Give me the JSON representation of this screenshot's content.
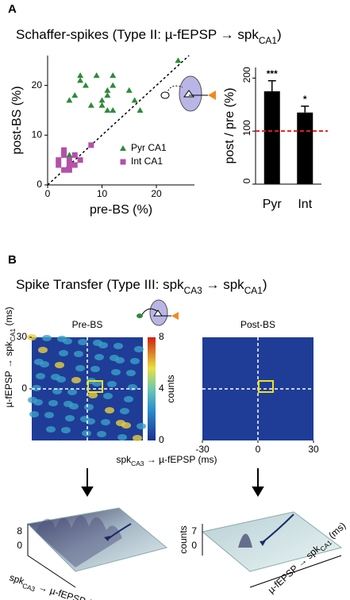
{
  "panels": [
    "A",
    "B"
  ],
  "panel_titles": [
    [
      "Schaffer-spikes  (Type II: µ-fEPSP → spk",
      "CA1",
      ")"
    ],
    [
      "Spike Transfer (Type III: spk",
      "CA3",
      " → spk",
      "CA1",
      ")"
    ]
  ],
  "chart_data": [
    {
      "type": "scatter",
      "xlabel": "pre-BS (%)",
      "ylabel": "post-BS (%)",
      "xlim": [
        0,
        27
      ],
      "ylim": [
        0,
        26
      ],
      "xticks": [
        0,
        10,
        20
      ],
      "yticks": [
        0,
        10,
        20
      ],
      "identity_line": true,
      "series": [
        {
          "name": "Pyr CA1",
          "color": "#2e8b3a",
          "marker": "triangle",
          "x": [
            3,
            4,
            5,
            4,
            5,
            6,
            6,
            7,
            8,
            10,
            10,
            11,
            12,
            12,
            11,
            12,
            15,
            16,
            17,
            24,
            11,
            9
          ],
          "values": [
            7,
            6,
            6,
            17,
            18,
            21,
            22,
            20,
            16,
            16,
            17,
            19,
            20,
            22,
            18,
            15,
            19,
            17,
            15,
            25,
            15,
            22
          ]
        },
        {
          "name": "Int CA1",
          "color": "#b450a8",
          "marker": "square",
          "x": [
            2,
            3,
            2,
            3,
            4,
            4,
            5,
            5,
            3,
            6,
            4,
            8
          ],
          "values": [
            5,
            6,
            4,
            3,
            4,
            5,
            4,
            6,
            7,
            5,
            3,
            8
          ]
        }
      ]
    },
    {
      "type": "bar",
      "ylabel": "post / pre (%)",
      "categories": [
        "Pyr",
        "Int"
      ],
      "values": [
        175,
        135
      ],
      "errors": [
        20,
        12
      ],
      "value_labels": [
        "***",
        "*"
      ],
      "color": "#000000",
      "ylim": [
        0,
        220
      ],
      "yticks": [
        0,
        100,
        200
      ],
      "ref_line": 100,
      "ref_color": "#e02020"
    },
    {
      "type": "heatmap",
      "title": "Pre-BS",
      "xlim": [
        -30,
        30
      ],
      "ylim": [
        -30,
        30
      ],
      "yticks": [
        0,
        30
      ],
      "colorbar_label": "counts",
      "colorbar_ticks": [
        0,
        4,
        8
      ]
    },
    {
      "type": "heatmap",
      "title": "Post-BS",
      "xlim": [
        -30,
        30
      ],
      "ylim": [
        -30,
        30
      ],
      "xticks": [
        -30,
        0,
        30
      ]
    }
  ],
  "heatmap_xlabel": [
    "spk",
    "CA3",
    " → µ-fEPSP (ms)"
  ],
  "heatmap_ylabel": [
    "µ-fEPSP → spk",
    "CA1",
    " (ms)"
  ],
  "surface_plots": [
    {
      "zticks": [
        8,
        0
      ],
      "xlabel": [
        "spk",
        "CA3",
        " → µ-fEPSP (ms)"
      ]
    },
    {
      "zticks": [
        7,
        0
      ],
      "zlabel": "counts",
      "ylabel": [
        "µ-fEPSP → spk",
        "CA1",
        " (ms)"
      ]
    }
  ]
}
